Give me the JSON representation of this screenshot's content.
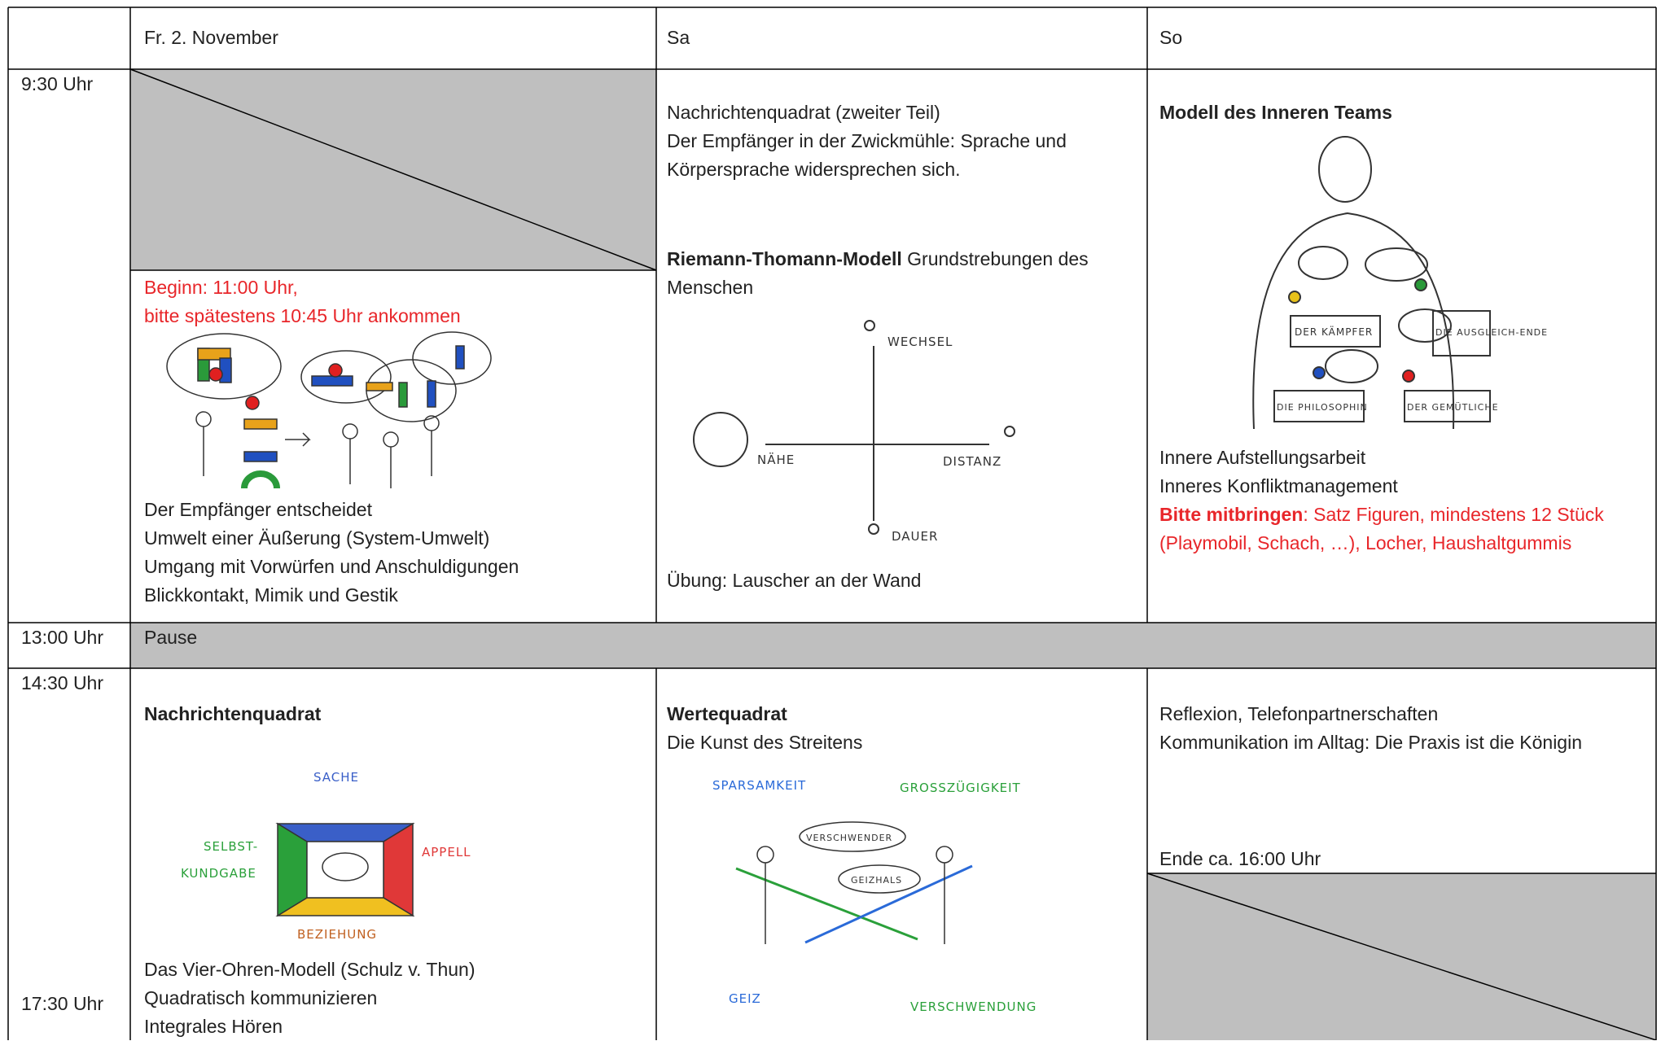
{
  "header": {
    "days": [
      "Fr. 2. November",
      "Sa",
      "So"
    ]
  },
  "times": [
    "9:30 Uhr",
    "13:00 Uhr",
    "14:30 Uhr",
    "17:30 Uhr"
  ],
  "morning": {
    "friday": {
      "start_note": [
        "Beginn: 11:00 Uhr,",
        "bitte spätestens 10:45 Uhr ankommen"
      ],
      "topics": [
        "Der Empfänger entscheidet",
        "Umwelt einer Äußerung (System-Umwelt)",
        "Umgang mit Vorwürfen und Anschuldigungen",
        "Blickkontakt, Mimik und Gestik"
      ]
    },
    "saturday": {
      "lines": [
        "Nachrichtenquadrat (zweiter Teil)",
        "Der Empfänger in der Zwickmühle: Sprache und Körpersprache widersprechen sich."
      ],
      "model_title": "Riemann-Thomann-Modell",
      "model_text": " Grundstrebungen des Menschen",
      "sketch_labels": [
        "WECHSEL",
        "NÄHE",
        "DISTANZ",
        "DAUER"
      ],
      "exercise": "Übung: Lauscher an der Wand"
    },
    "sunday": {
      "title": "Modell des Inneren Teams",
      "sketch_labels": [
        "DER KÄMPFER",
        "DIE AUSGLEICH-ENDE",
        "DIE PHILOSOPHIN",
        "DER GEMÜTLICHE"
      ],
      "lines": [
        "Innere Aufstellungsarbeit",
        "Inneres Konfliktmanagement"
      ],
      "bring_label": "Bitte mitbringen",
      "bring_text": ": Satz Figuren, mindestens 12 Stück (Playmobil, Schach, …), Locher, Haushaltgummis"
    }
  },
  "pause": "Pause",
  "afternoon": {
    "friday": {
      "title": "Nachrichtenquadrat",
      "sketch_labels": [
        "SACHE",
        "SELBST-",
        "KUNDGABE",
        "APPELL",
        "BEZIEHUNG"
      ],
      "lines": [
        "Das Vier-Ohren-Modell (Schulz v. Thun)",
        "Quadratisch kommunizieren",
        "Integrales Hören"
      ]
    },
    "saturday": {
      "title": "Wertequadrat",
      "subtitle": "Die Kunst des Streitens",
      "sketch_labels": [
        "SPARSAMKEIT",
        "GROSSZÜGIGKEIT",
        "VERSCHWENDER",
        "GEIZHALS",
        "GEIZ",
        "VERSCHWENDUNG"
      ]
    },
    "sunday": {
      "lines": [
        "Reflexion, Telefonpartnerschaften",
        "Kommunikation im Alltag: Die Praxis ist die Königin"
      ],
      "end": "Ende ca. 16:00 Uhr"
    }
  }
}
